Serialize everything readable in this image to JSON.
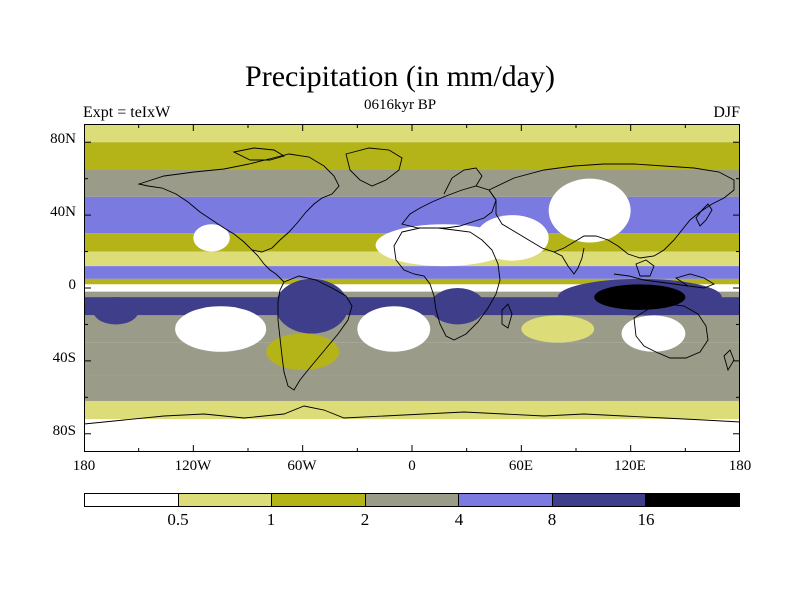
{
  "title": "Precipitation (in mm/day)",
  "subtitle": "0616kyr BP",
  "left_label": "Expt = teIxW",
  "right_label": "DJF",
  "lat_ticks": [
    "80N",
    "40N",
    "0",
    "40S",
    "80S"
  ],
  "lon_ticks": [
    "180",
    "120W",
    "60W",
    "0",
    "60E",
    "120E",
    "180"
  ],
  "legend": {
    "labels": [
      "0.5",
      "1",
      "2",
      "4",
      "8",
      "16"
    ],
    "colors": [
      "#ffffff",
      "#dcdc78",
      "#b4b418",
      "#9b9b8a",
      "#7a7ae0",
      "#3e3e8a",
      "#000000"
    ]
  },
  "chart_data": {
    "type": "heatmap",
    "title": "Precipitation (in mm/day)",
    "subtitle": "0616kyr BP",
    "experiment": "Expt = teIxW",
    "season": "DJF",
    "x_range": [
      -180,
      180
    ],
    "y_range": [
      -90,
      90
    ],
    "contour_levels": [
      0.5,
      1,
      2,
      4,
      8,
      16
    ],
    "zonal_bands": [
      {
        "lat": [
          80,
          90
        ],
        "class": 1
      },
      {
        "lat": [
          65,
          80
        ],
        "class": 2
      },
      {
        "lat": [
          50,
          65
        ],
        "class": 3
      },
      {
        "lat": [
          30,
          50
        ],
        "class": 4
      },
      {
        "lat": [
          20,
          30
        ],
        "class": 2
      },
      {
        "lat": [
          12,
          20
        ],
        "class": 1
      },
      {
        "lat": [
          5,
          12
        ],
        "class": 4
      },
      {
        "lat": [
          2,
          5
        ],
        "class": 2
      },
      {
        "lat": [
          -2,
          2
        ],
        "class": 0
      },
      {
        "lat": [
          -5,
          -2
        ],
        "class": 3
      },
      {
        "lat": [
          -15,
          -5
        ],
        "class": 5
      },
      {
        "lat": [
          -30,
          -15
        ],
        "class": 3
      },
      {
        "lat": [
          -48,
          -30
        ],
        "class": 3
      },
      {
        "lat": [
          -62,
          -48
        ],
        "class": 3
      },
      {
        "lat": [
          -72,
          -62
        ],
        "class": 1
      },
      {
        "lat": [
          -90,
          -72
        ],
        "class": 0
      }
    ],
    "regions": [
      {
        "lon": [
          -130,
          -80
        ],
        "lat": [
          -35,
          -10
        ],
        "class": 0
      },
      {
        "lon": [
          -30,
          10
        ],
        "lat": [
          -35,
          -10
        ],
        "class": 0
      },
      {
        "lon": [
          60,
          100
        ],
        "lat": [
          -30,
          -15
        ],
        "class": 1
      },
      {
        "lon": [
          -20,
          55
        ],
        "lat": [
          12,
          35
        ],
        "class": 0
      },
      {
        "lon": [
          35,
          75
        ],
        "lat": [
          15,
          40
        ],
        "class": 0
      },
      {
        "lon": [
          75,
          120
        ],
        "lat": [
          25,
          60
        ],
        "class": 0
      },
      {
        "lon": [
          -120,
          -100
        ],
        "lat": [
          20,
          35
        ],
        "class": 0
      },
      {
        "lon": [
          -75,
          -35
        ],
        "lat": [
          -25,
          5
        ],
        "class": 5
      },
      {
        "lon": [
          10,
          40
        ],
        "lat": [
          -20,
          0
        ],
        "class": 5
      },
      {
        "lon": [
          80,
          170
        ],
        "lat": [
          -15,
          5
        ],
        "class": 5
      },
      {
        "lon": [
          100,
          150
        ],
        "lat": [
          -12,
          2
        ],
        "class": 6
      },
      {
        "lon": [
          115,
          150
        ],
        "lat": [
          -35,
          -15
        ],
        "class": 0
      },
      {
        "lon": [
          -80,
          -40
        ],
        "lat": [
          -45,
          -25
        ],
        "class": 2
      },
      {
        "lon": [
          -175,
          -150
        ],
        "lat": [
          -20,
          -5
        ],
        "class": 5
      }
    ]
  }
}
